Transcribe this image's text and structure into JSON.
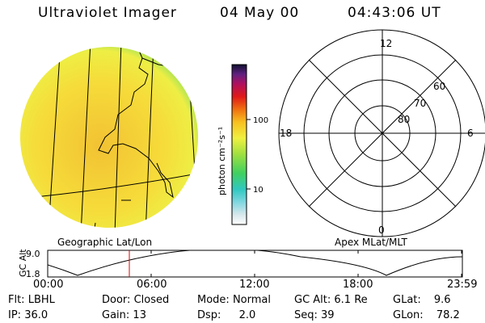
{
  "header": {
    "instrument": "Ultraviolet Imager",
    "date": "04 May 00",
    "time": "04:43:06 UT"
  },
  "colorbar": {
    "label": "photon cm⁻²s⁻¹",
    "ticks": [
      "100",
      "10"
    ]
  },
  "polar": {
    "mlt_labels": [
      "12",
      "18",
      "6",
      "0"
    ],
    "lat_labels": [
      "60",
      "70",
      "80"
    ]
  },
  "panel_labels": {
    "left": "Geographic Lat/Lon",
    "right": "Apex MLat/MLT"
  },
  "orbit": {
    "ylabel": "GC Alt",
    "y_ticks": [
      "9.0",
      "1.8"
    ],
    "x_ticks": [
      "00:00",
      "06:00",
      "12:00",
      "18:00",
      "23:59"
    ]
  },
  "status": {
    "row1": [
      {
        "key": "Flt:",
        "value": "LBHL"
      },
      {
        "key": "Door:",
        "value": "Closed"
      },
      {
        "key": "Mode:",
        "value": "Normal"
      },
      {
        "key": "GC Alt:",
        "value": "6.1 Re"
      },
      {
        "key": "GLat:",
        "value": "9.6"
      }
    ],
    "row2": [
      {
        "key": "IP:",
        "value": "36.0"
      },
      {
        "key": "Gain:",
        "value": "13"
      },
      {
        "key": "Dsp:",
        "value": "2.0"
      },
      {
        "key": "Seq:",
        "value": "39"
      },
      {
        "key": "GLon:",
        "value": "78.2"
      }
    ]
  }
}
